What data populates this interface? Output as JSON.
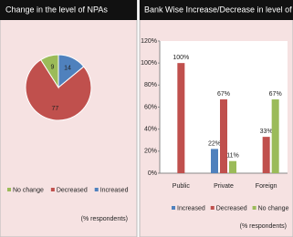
{
  "chart_data": [
    {
      "type": "pie",
      "title": "Change in the level of NPAs",
      "categories": [
        "No change",
        "Decreased",
        "Increased"
      ],
      "values": [
        9,
        77,
        14
      ],
      "colors": [
        "#9bbb59",
        "#c0504d",
        "#4f81bd"
      ],
      "footnote": "(% respondents)"
    },
    {
      "type": "bar",
      "title": "Bank Wise Increase/Decrease in level of NPAs",
      "categories": [
        "Public",
        "Private",
        "Foreign"
      ],
      "series": [
        {
          "name": "Increased",
          "color": "#4f81bd",
          "values": [
            null,
            22,
            null
          ],
          "value_labels": [
            null,
            "22%",
            null
          ]
        },
        {
          "name": "Decreased",
          "color": "#c0504d",
          "values": [
            100,
            67,
            33
          ],
          "value_labels": [
            "100%",
            "67%",
            "33%"
          ]
        },
        {
          "name": "No change",
          "color": "#9bbb59",
          "values": [
            null,
            11,
            67
          ],
          "value_labels": [
            null,
            "11%",
            "67%"
          ]
        }
      ],
      "ylim": [
        0,
        120
      ],
      "yticks": [
        {
          "value": 0,
          "label": "0%"
        },
        {
          "value": 20,
          "label": "20%"
        },
        {
          "value": 40,
          "label": "40%"
        },
        {
          "value": 60,
          "label": "60%"
        },
        {
          "value": 80,
          "label": "80%"
        },
        {
          "value": 100,
          "label": "100%"
        },
        {
          "value": 120,
          "label": "120%"
        }
      ],
      "footnote": "(% respondents)"
    }
  ]
}
